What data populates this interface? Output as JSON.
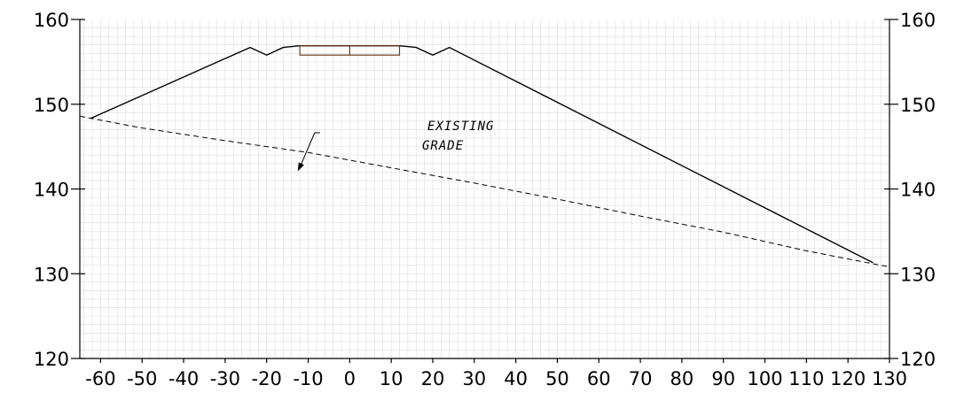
{
  "chart_data": {
    "type": "line",
    "xlim": [
      -65,
      130
    ],
    "ylim": [
      120,
      160
    ],
    "grid": true,
    "x_ticks": [
      "-60",
      "-50",
      "-40",
      "-30",
      "-20",
      "-10",
      "0",
      "10",
      "20",
      "30",
      "40",
      "50",
      "60",
      "70",
      "80",
      "90",
      "100",
      "110",
      "120",
      "130"
    ],
    "y_ticks_left": [
      "120",
      "130",
      "140",
      "150",
      "160"
    ],
    "y_ticks_right": [
      "120",
      "130",
      "140",
      "150",
      "160"
    ],
    "series": [
      {
        "x": [
          -62.5,
          -24,
          -20,
          -16,
          -12,
          12,
          16,
          20,
          24,
          126
        ],
        "y": [
          148.3,
          156.7,
          155.8,
          156.7,
          156.9,
          156.9,
          156.7,
          155.8,
          156.7,
          131.3
        ]
      },
      {
        "x": [
          -65,
          -50,
          -30,
          -10,
          10,
          30,
          50,
          70,
          90,
          110,
          130
        ],
        "y": [
          148.6,
          147.2,
          145.7,
          144.3,
          142.5,
          140.7,
          138.8,
          136.8,
          134.9,
          132.7,
          130.8
        ]
      }
    ],
    "pavement": {
      "x": [
        -12,
        12
      ],
      "top": 156.9,
      "bottom": 155.8,
      "divider_x": 0
    },
    "annotation": {
      "lines": [
        "EXISTING",
        "GRADE"
      ],
      "arrow_to": {
        "x": -12.5,
        "y": 142.1
      }
    }
  }
}
